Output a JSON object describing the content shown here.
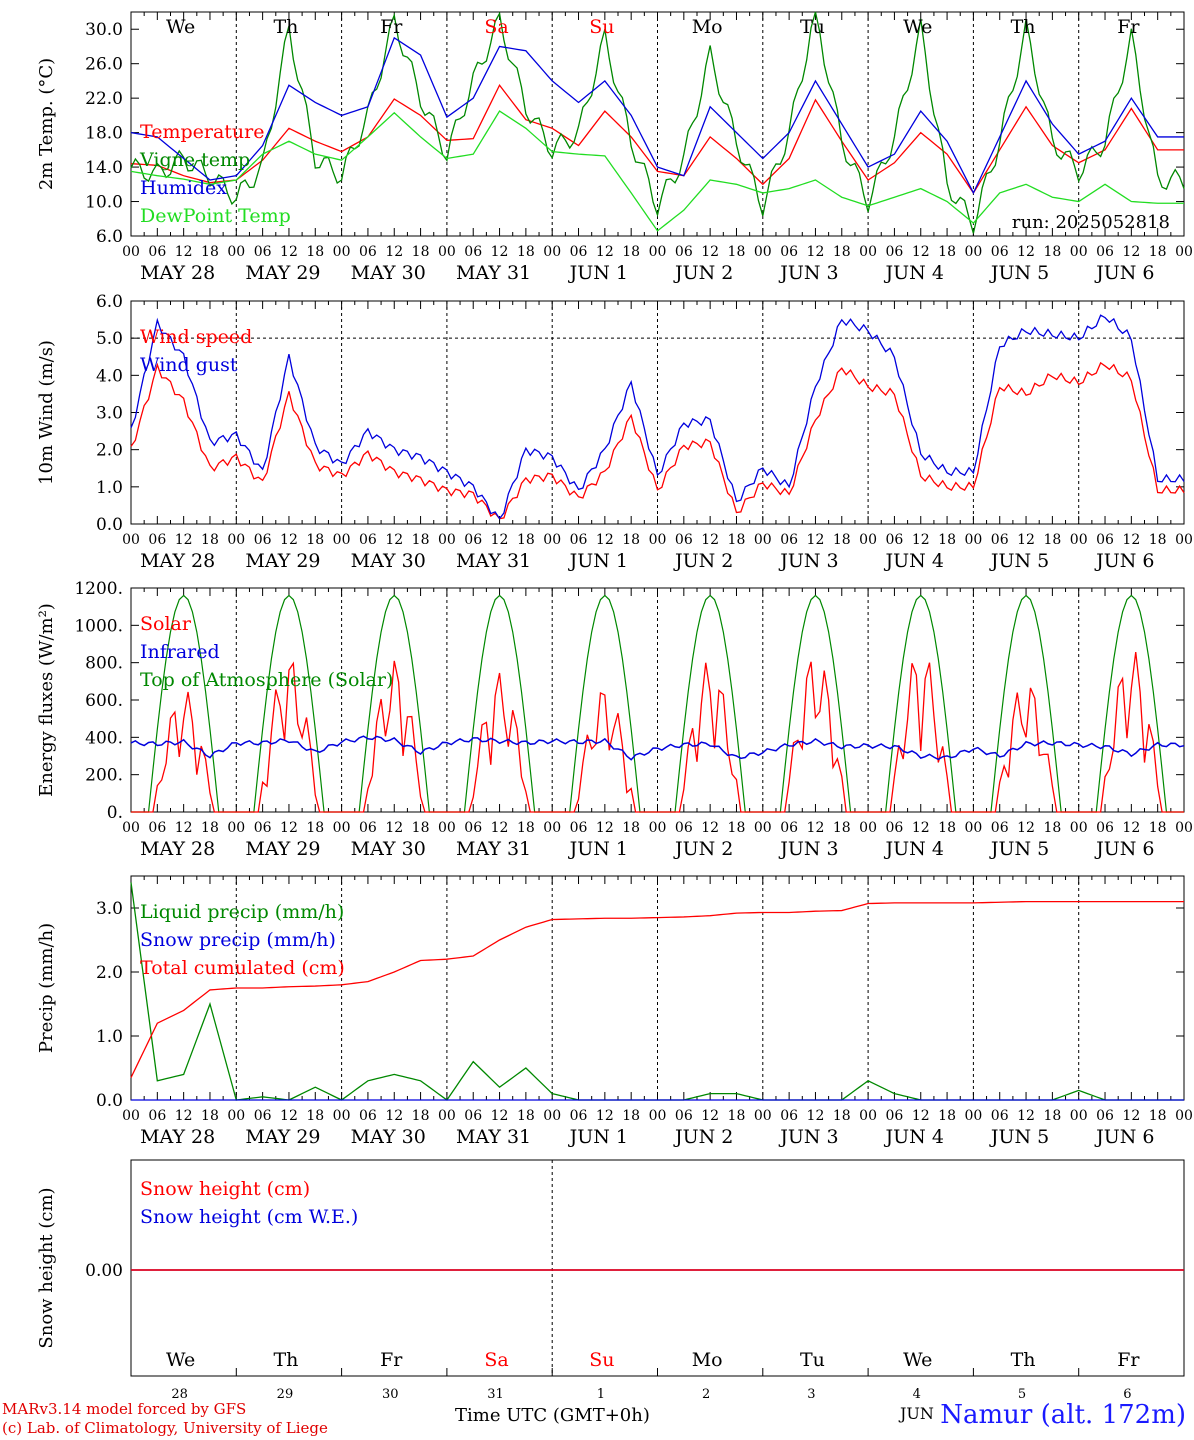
{
  "chart_data": [
    {
      "type": "line",
      "ylabel": "2m Temp. (°C)",
      "ylim": [
        6,
        32
      ],
      "yticks": [
        "6.0",
        "10.0",
        "14.0",
        "18.0",
        "22.0",
        "26.0",
        "30.0"
      ],
      "grid": "vertical dashed day separators",
      "legend_placement": "left",
      "annotation": "run: 2025052818",
      "x_hours": [
        0,
        6,
        12,
        18,
        24,
        30,
        36,
        42,
        48,
        54,
        60,
        66,
        72,
        78,
        84,
        90,
        96,
        102,
        108,
        114,
        120,
        126,
        132,
        138,
        144,
        150,
        156,
        162,
        168,
        174,
        180,
        186,
        192,
        198,
        204,
        210,
        216,
        222,
        228,
        234
      ],
      "series": [
        {
          "name": "Temperature",
          "color": "#ff0000",
          "values": [
            14.4,
            14.2,
            13.0,
            12.2,
            12.5,
            14.8,
            18.5,
            17.0,
            15.8,
            17.5,
            21.9,
            20.0,
            17.1,
            17.3,
            23.5,
            19.5,
            18.5,
            16.5,
            20.5,
            17.5,
            13.5,
            13.0,
            17.5,
            15.0,
            12.0,
            15.0,
            21.8,
            17.0,
            12.5,
            14.5,
            18.0,
            15.5,
            11.0,
            16.0,
            21.0,
            16.5,
            14.5,
            16.0,
            20.8,
            16.0
          ]
        },
        {
          "name": "Vigne temp",
          "color": "#008800",
          "values": [
            13.9,
            13.2,
            15.0,
            13.0,
            10.5,
            14.0,
            30.0,
            15.0,
            13.0,
            20.0,
            31.0,
            22.0,
            15.5,
            24.0,
            31.0,
            21.0,
            16.0,
            18.0,
            29.0,
            17.0,
            9.5,
            15.0,
            27.0,
            17.0,
            9.5,
            18.0,
            32.0,
            17.0,
            10.0,
            17.5,
            30.0,
            12.0,
            7.5,
            17.0,
            30.0,
            17.0,
            13.5,
            17.0,
            29.0,
            12.5
          ]
        },
        {
          "name": "Humidex",
          "color": "#0000dd",
          "values": [
            18.0,
            17.5,
            15.0,
            12.5,
            13.0,
            16.5,
            23.5,
            21.5,
            20.0,
            21.0,
            29.0,
            27.0,
            19.8,
            22.0,
            28.0,
            27.5,
            24.0,
            21.5,
            24.0,
            20.0,
            14.0,
            13.0,
            21.0,
            18.0,
            15.0,
            18.0,
            24.0,
            19.0,
            14.0,
            15.5,
            20.5,
            17.0,
            11.0,
            17.5,
            24.0,
            19.0,
            15.5,
            17.0,
            22.0,
            17.5
          ]
        },
        {
          "name": "DewPoint Temp",
          "color": "#22dd22",
          "values": [
            13.5,
            13.0,
            12.6,
            12.0,
            12.5,
            15.5,
            17.0,
            15.5,
            14.8,
            17.5,
            20.3,
            17.5,
            15.0,
            15.5,
            20.5,
            18.5,
            15.8,
            15.5,
            15.3,
            11.0,
            6.6,
            9.0,
            12.5,
            12.0,
            11.0,
            11.5,
            12.5,
            10.5,
            9.5,
            10.5,
            11.5,
            10.0,
            7.5,
            11.0,
            12.0,
            10.5,
            10.0,
            12.0,
            10.0,
            9.8
          ]
        }
      ]
    },
    {
      "type": "line",
      "ylabel": "10m Wind (m/s)",
      "ylim": [
        0,
        6
      ],
      "yticks": [
        "0.0",
        "1.0",
        "2.0",
        "3.0",
        "4.0",
        "5.0",
        "6.0"
      ],
      "reference_line": 5.0,
      "legend_placement": "left",
      "x_hours": [
        0,
        6,
        12,
        18,
        24,
        30,
        36,
        42,
        48,
        54,
        60,
        66,
        72,
        78,
        84,
        90,
        96,
        102,
        108,
        114,
        120,
        126,
        132,
        138,
        144,
        150,
        156,
        162,
        168,
        174,
        180,
        186,
        192,
        198,
        204,
        210,
        216,
        222,
        228,
        234
      ],
      "series": [
        {
          "name": "Wind speed",
          "color": "#ff0000",
          "values": [
            2.0,
            4.2,
            3.3,
            1.5,
            1.8,
            1.1,
            3.5,
            1.6,
            1.3,
            1.9,
            1.4,
            1.2,
            0.9,
            0.8,
            0.1,
            1.2,
            1.3,
            0.7,
            1.4,
            2.9,
            0.9,
            2.1,
            2.2,
            0.3,
            1.1,
            0.8,
            2.8,
            4.2,
            3.7,
            3.5,
            1.3,
            1.0,
            1.0,
            3.7,
            3.5,
            4.0,
            3.8,
            4.3,
            3.9,
            0.9
          ]
        },
        {
          "name": "Wind gust",
          "color": "#0000dd",
          "values": [
            2.5,
            5.4,
            4.5,
            2.2,
            2.4,
            1.4,
            4.5,
            2.1,
            1.6,
            2.5,
            2.0,
            1.8,
            1.4,
            1.0,
            0.1,
            2.0,
            1.8,
            0.9,
            2.0,
            3.8,
            1.3,
            2.7,
            2.8,
            0.6,
            1.5,
            1.0,
            3.7,
            5.5,
            5.2,
            4.5,
            1.9,
            1.4,
            1.4,
            4.8,
            5.2,
            5.1,
            5.0,
            5.6,
            5.0,
            1.2
          ]
        }
      ]
    },
    {
      "type": "line",
      "ylabel": "Energy fluxes (W/m²)",
      "ylim": [
        0,
        1200
      ],
      "yticks": [
        "0.",
        "200.",
        "400.",
        "600.",
        "800.",
        "1000.",
        "1200."
      ],
      "legend_placement": "left",
      "series": [
        {
          "name": "Solar",
          "color": "#ff0000",
          "daily_peaks": [
            660,
            840,
            820,
            750,
            680,
            820,
            860,
            890,
            720,
            880
          ]
        },
        {
          "name": "Infrared",
          "color": "#0000dd",
          "values": [
            370,
            365,
            375,
            300,
            370,
            370,
            385,
            320,
            375,
            400,
            385,
            320,
            370,
            390,
            380,
            370,
            380,
            375,
            380,
            290,
            340,
            360,
            365,
            290,
            320,
            360,
            380,
            350,
            355,
            350,
            300,
            290,
            340,
            300,
            365,
            370,
            360,
            350,
            310,
            360
          ]
        },
        {
          "name": "Top of Atmosphere (Solar)",
          "color": "#008800",
          "daily_peak": 1160
        }
      ]
    },
    {
      "type": "line",
      "ylabel": "Precip (mm/h)",
      "ylim": [
        0,
        3.5
      ],
      "yticks": [
        "0.0",
        "1.0",
        "2.0",
        "3.0"
      ],
      "legend_placement": "left",
      "x_hours": [
        0,
        6,
        12,
        18,
        24,
        30,
        36,
        42,
        48,
        54,
        60,
        66,
        72,
        78,
        84,
        90,
        96,
        102,
        108,
        114,
        120,
        126,
        132,
        138,
        144,
        150,
        156,
        162,
        168,
        174,
        180,
        186,
        192,
        198,
        204,
        210,
        216,
        222,
        228,
        234
      ],
      "series": [
        {
          "name": "Liquid precip (mm/h)",
          "color": "#008800",
          "values": [
            3.4,
            0.3,
            0.4,
            1.5,
            0.0,
            0.05,
            0.0,
            0.2,
            0.0,
            0.3,
            0.4,
            0.3,
            0.0,
            0.6,
            0.2,
            0.5,
            0.1,
            0.0,
            0.0,
            0.0,
            0.0,
            0.0,
            0.1,
            0.1,
            0.0,
            0.0,
            0.0,
            0.0,
            0.3,
            0.1,
            0.0,
            0.0,
            0.0,
            0.0,
            0.0,
            0.0,
            0.15,
            0.0,
            0.0,
            0.0
          ]
        },
        {
          "name": "Snow precip (mm/h)",
          "color": "#0000dd",
          "values": [
            0,
            0,
            0,
            0,
            0,
            0,
            0,
            0,
            0,
            0,
            0,
            0,
            0,
            0,
            0,
            0,
            0,
            0,
            0,
            0,
            0,
            0,
            0,
            0,
            0,
            0,
            0,
            0,
            0,
            0,
            0,
            0,
            0,
            0,
            0,
            0,
            0,
            0,
            0,
            0
          ]
        },
        {
          "name": "Total cumulated (cm)",
          "color": "#ff0000",
          "values": [
            0.35,
            1.2,
            1.4,
            1.72,
            1.75,
            1.75,
            1.77,
            1.78,
            1.8,
            1.85,
            2.0,
            2.18,
            2.2,
            2.25,
            2.5,
            2.7,
            2.82,
            2.83,
            2.84,
            2.84,
            2.85,
            2.86,
            2.88,
            2.92,
            2.93,
            2.93,
            2.95,
            2.96,
            3.07,
            3.08,
            3.08,
            3.08,
            3.08,
            3.09,
            3.1,
            3.1,
            3.1,
            3.1,
            3.1,
            3.1
          ]
        }
      ]
    },
    {
      "type": "line",
      "ylabel": "Snow height (cm)",
      "yticks": [
        "0.00"
      ],
      "legend_placement": "left",
      "series": [
        {
          "name": "Snow height (cm)",
          "color": "#ff0000",
          "values": [
            0,
            0
          ]
        },
        {
          "name": "Snow height (cm W.E.)",
          "color": "#0000dd",
          "values": [
            0,
            0
          ]
        }
      ]
    }
  ],
  "weekdays": [
    {
      "label": "We",
      "color": "#000000"
    },
    {
      "label": "Th",
      "color": "#000000"
    },
    {
      "label": "Fr",
      "color": "#000000"
    },
    {
      "label": "Sa",
      "color": "#ff0000"
    },
    {
      "label": "Su",
      "color": "#ff0000"
    },
    {
      "label": "Mo",
      "color": "#000000"
    },
    {
      "label": "Tu",
      "color": "#000000"
    },
    {
      "label": "We",
      "color": "#000000"
    },
    {
      "label": "Th",
      "color": "#000000"
    },
    {
      "label": "Fr",
      "color": "#000000"
    }
  ],
  "date_labels": [
    "MAY 28",
    "MAY 29",
    "MAY 30",
    "MAY 31",
    "JUN  1",
    "JUN  2",
    "JUN  3",
    "JUN  4",
    "JUN  5",
    "JUN  6"
  ],
  "hour_tick_labels": [
    "00",
    "06",
    "12",
    "18"
  ],
  "final_hour_label": "00",
  "bottom_day_numbers": [
    "28",
    "29",
    "30",
    "31",
    "1",
    "2",
    "3",
    "4",
    "5",
    "6"
  ],
  "bottom_month_label": "JUN",
  "footer": {
    "model_line": "MARv3.14 model forced by GFS",
    "copyright_line": "(c) Lab. of Climatology, University of Liege",
    "time_axis_label": "Time UTC (GMT+0h)",
    "station": "Namur (alt. 172m)"
  }
}
